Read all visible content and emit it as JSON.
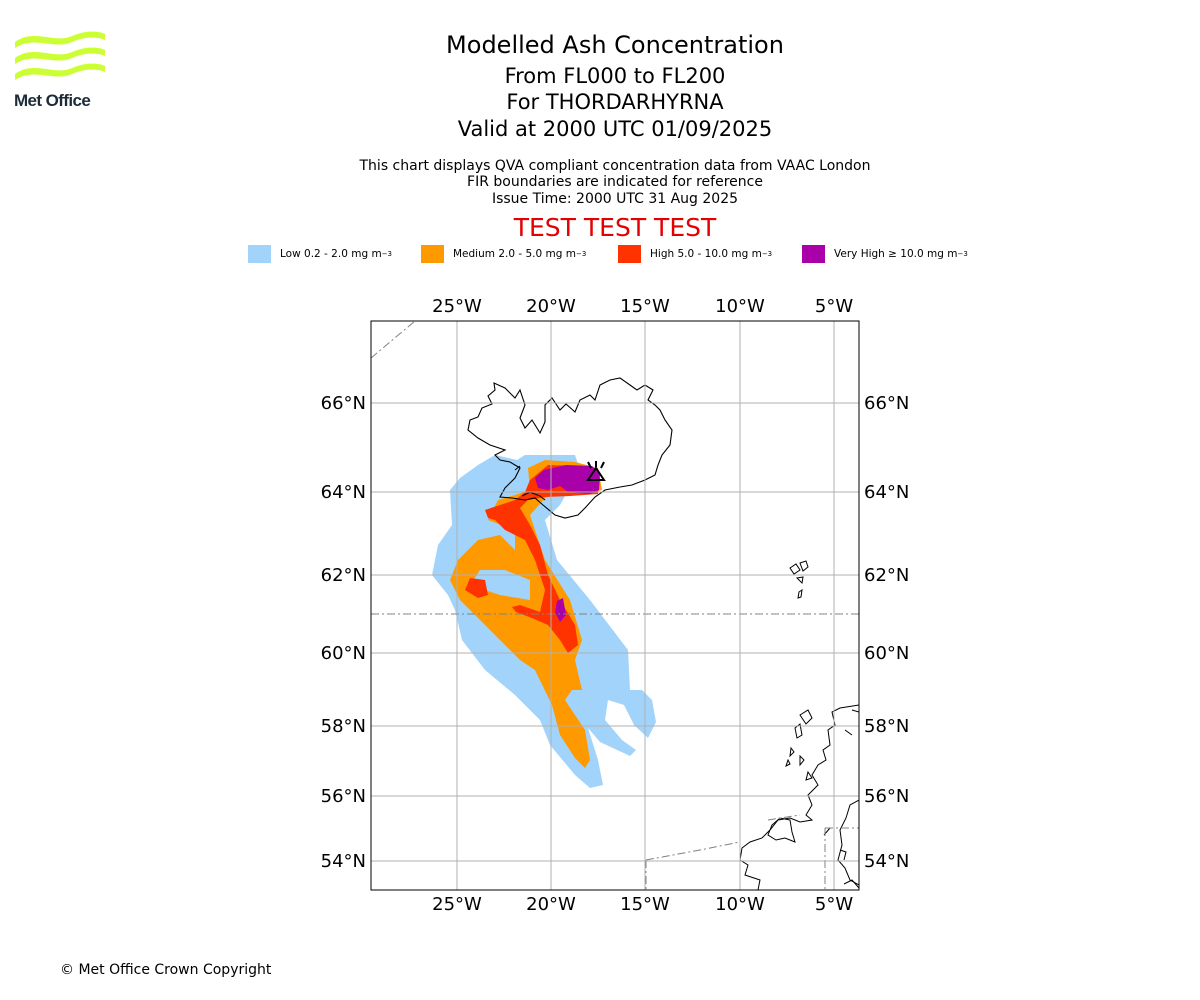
{
  "header": {
    "title": "Modelled Ash Concentration",
    "levels": "From FL000 to FL200",
    "volcano": "For THORDARHYRNA",
    "valid": "Valid at 2000 UTC 01/09/2025",
    "note1": "This chart displays QVA compliant concentration data from VAAC London",
    "note2": "FIR boundaries are indicated for reference",
    "issue": "Issue Time: 2000 UTC 31 Aug 2025",
    "test_banner": "TEST TEST TEST"
  },
  "logo": {
    "text": "Met Office",
    "color": "#ccff33"
  },
  "legend": [
    {
      "label": "Low 0.2 - 2.0 mg m",
      "sup": "−3",
      "color": "#a2d3fa"
    },
    {
      "label": "Medium 2.0 - 5.0 mg m",
      "sup": "−3",
      "color": "#ff9900"
    },
    {
      "label": "High 5.0 - 10.0 mg m",
      "sup": "−3",
      "color": "#ff3300"
    },
    {
      "label": "Very High  ≥  10.0 mg m",
      "sup": "−3",
      "color": "#aa00aa"
    }
  ],
  "map": {
    "lon_labels": [
      "25°W",
      "20°W",
      "15°W",
      "10°W",
      "5°W"
    ],
    "lat_labels": [
      "66°N",
      "64°N",
      "62°N",
      "60°N",
      "58°N",
      "56°N",
      "54°N"
    ],
    "lon_range": [
      -29.5,
      -3.5
    ],
    "lat_range": [
      53.3,
      67.8
    ],
    "volcano_marker": "volcano-symbol"
  },
  "footer": {
    "copyright": "© Met Office Crown Copyright"
  }
}
